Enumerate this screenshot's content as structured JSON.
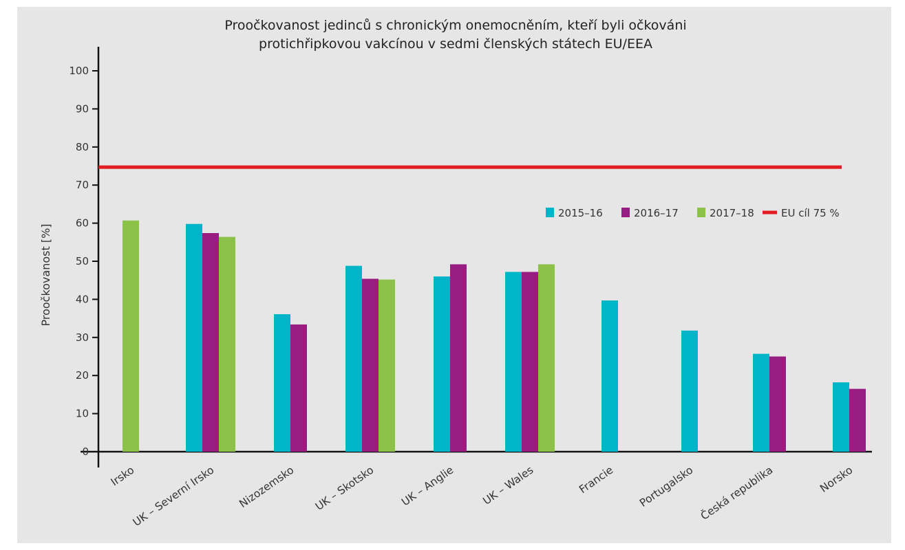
{
  "chart_data": {
    "type": "bar",
    "title": "Proočkovanost jedinců s chronickým onemocněním, kteří byli očkováni protichřipkovou vakcínou v sedmi členských státech EU/EEA",
    "title_lines": [
      "Proočkovanost jedinců s chronickým onemocněním, kteří byli očkováni",
      "protichřipkovou vakcínou v sedmi členských státech EU/EEA"
    ],
    "xlabel": "",
    "ylabel": "Proočkovanost [%]",
    "ylim": [
      0,
      100
    ],
    "yticks": [
      0,
      10,
      20,
      30,
      40,
      50,
      60,
      70,
      80,
      90,
      100
    ],
    "categories": [
      "Irsko",
      "UK – Severní Irsko",
      "Nizozemsko",
      "UK – Skotsko",
      "UK – Anglie",
      "UK – Wales",
      "Francie",
      "Portugalsko",
      "Česká republika",
      "Norsko"
    ],
    "series": [
      {
        "name": "2015–16",
        "color": "#00b5c7",
        "values": [
          null,
          59.8,
          36.1,
          48.8,
          46.0,
          47.2,
          39.7,
          31.8,
          25.7,
          18.2
        ]
      },
      {
        "name": "2016–17",
        "color": "#971d80",
        "values": [
          null,
          57.4,
          33.4,
          45.4,
          49.2,
          47.2,
          null,
          null,
          25.0,
          16.5
        ]
      },
      {
        "name": "2017–18",
        "color": "#8cc24a",
        "values": [
          60.7,
          56.4,
          null,
          45.2,
          null,
          49.2,
          null,
          null,
          null,
          null
        ]
      }
    ],
    "target_line": {
      "value": 74.7,
      "label": "EU cíl 75 %",
      "color": "#e31b23"
    },
    "grid": false,
    "legend_position": "top-right"
  }
}
